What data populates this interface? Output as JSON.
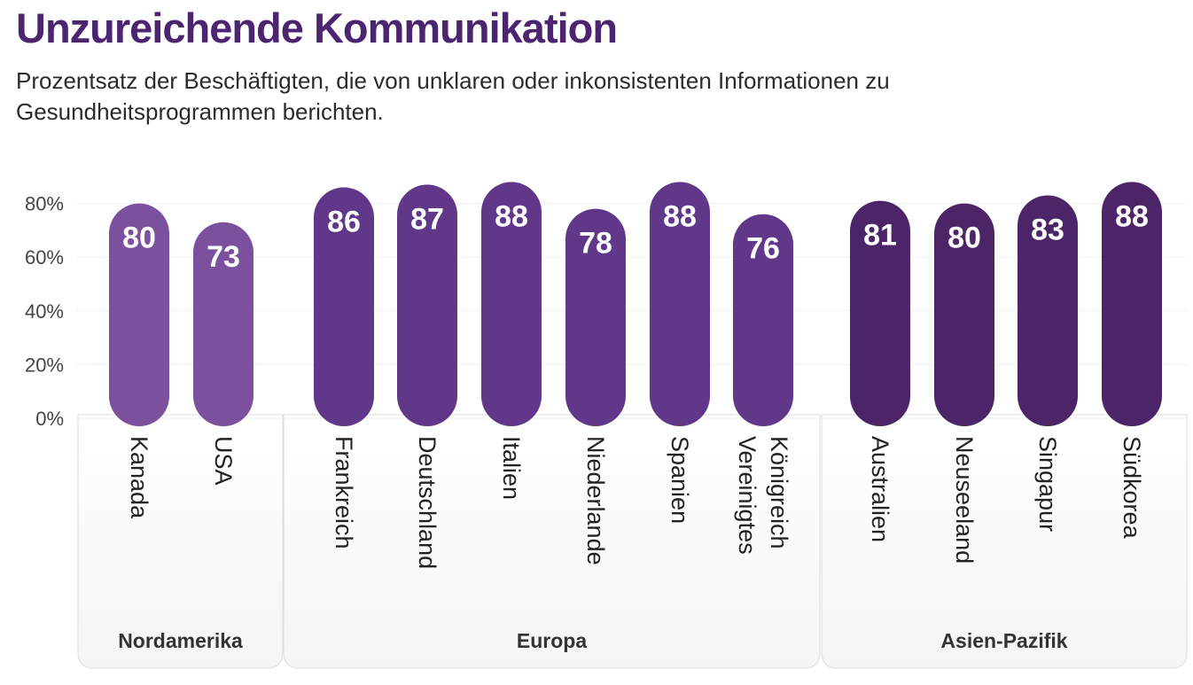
{
  "chart_data": {
    "type": "bar",
    "title": "Unzureichende Kommunikation",
    "subtitle": "Prozentsatz der Beschäftigten, die von unklaren oder inkonsistenten Informationen zu Gesundheitsprogrammen berichten.",
    "xlabel": "",
    "ylabel": "",
    "ylim": [
      0,
      80
    ],
    "yticks": [
      "0%",
      "20%",
      "40%",
      "60%",
      "80%"
    ],
    "ytick_values": [
      0,
      20,
      40,
      60,
      80
    ],
    "grid": true,
    "groups": [
      {
        "name": "Nordamerika",
        "color": "#7B519E",
        "categories": [
          [
            "Kanada"
          ],
          [
            "USA"
          ]
        ],
        "values": [
          80,
          73
        ]
      },
      {
        "name": "Europa",
        "color": "#613789",
        "categories": [
          [
            "Frankreich"
          ],
          [
            "Deutschland"
          ],
          [
            "Italien"
          ],
          [
            "Niederlande"
          ],
          [
            "Spanien"
          ],
          [
            "Vereinigtes",
            "Königreich"
          ]
        ],
        "values": [
          86,
          87,
          88,
          78,
          88,
          76
        ]
      },
      {
        "name": "Asien-Pazifik",
        "color": "#4C2568",
        "categories": [
          [
            "Australien"
          ],
          [
            "Neuseeland"
          ],
          [
            "Singapur"
          ],
          [
            "Südkorea"
          ]
        ],
        "values": [
          81,
          80,
          83,
          88
        ]
      }
    ]
  },
  "colors": {
    "title": "#4D2470",
    "grid": "#EFEFF2",
    "panel_fill": "#F6F6F9",
    "panel_stroke": "#DCDCE2"
  }
}
